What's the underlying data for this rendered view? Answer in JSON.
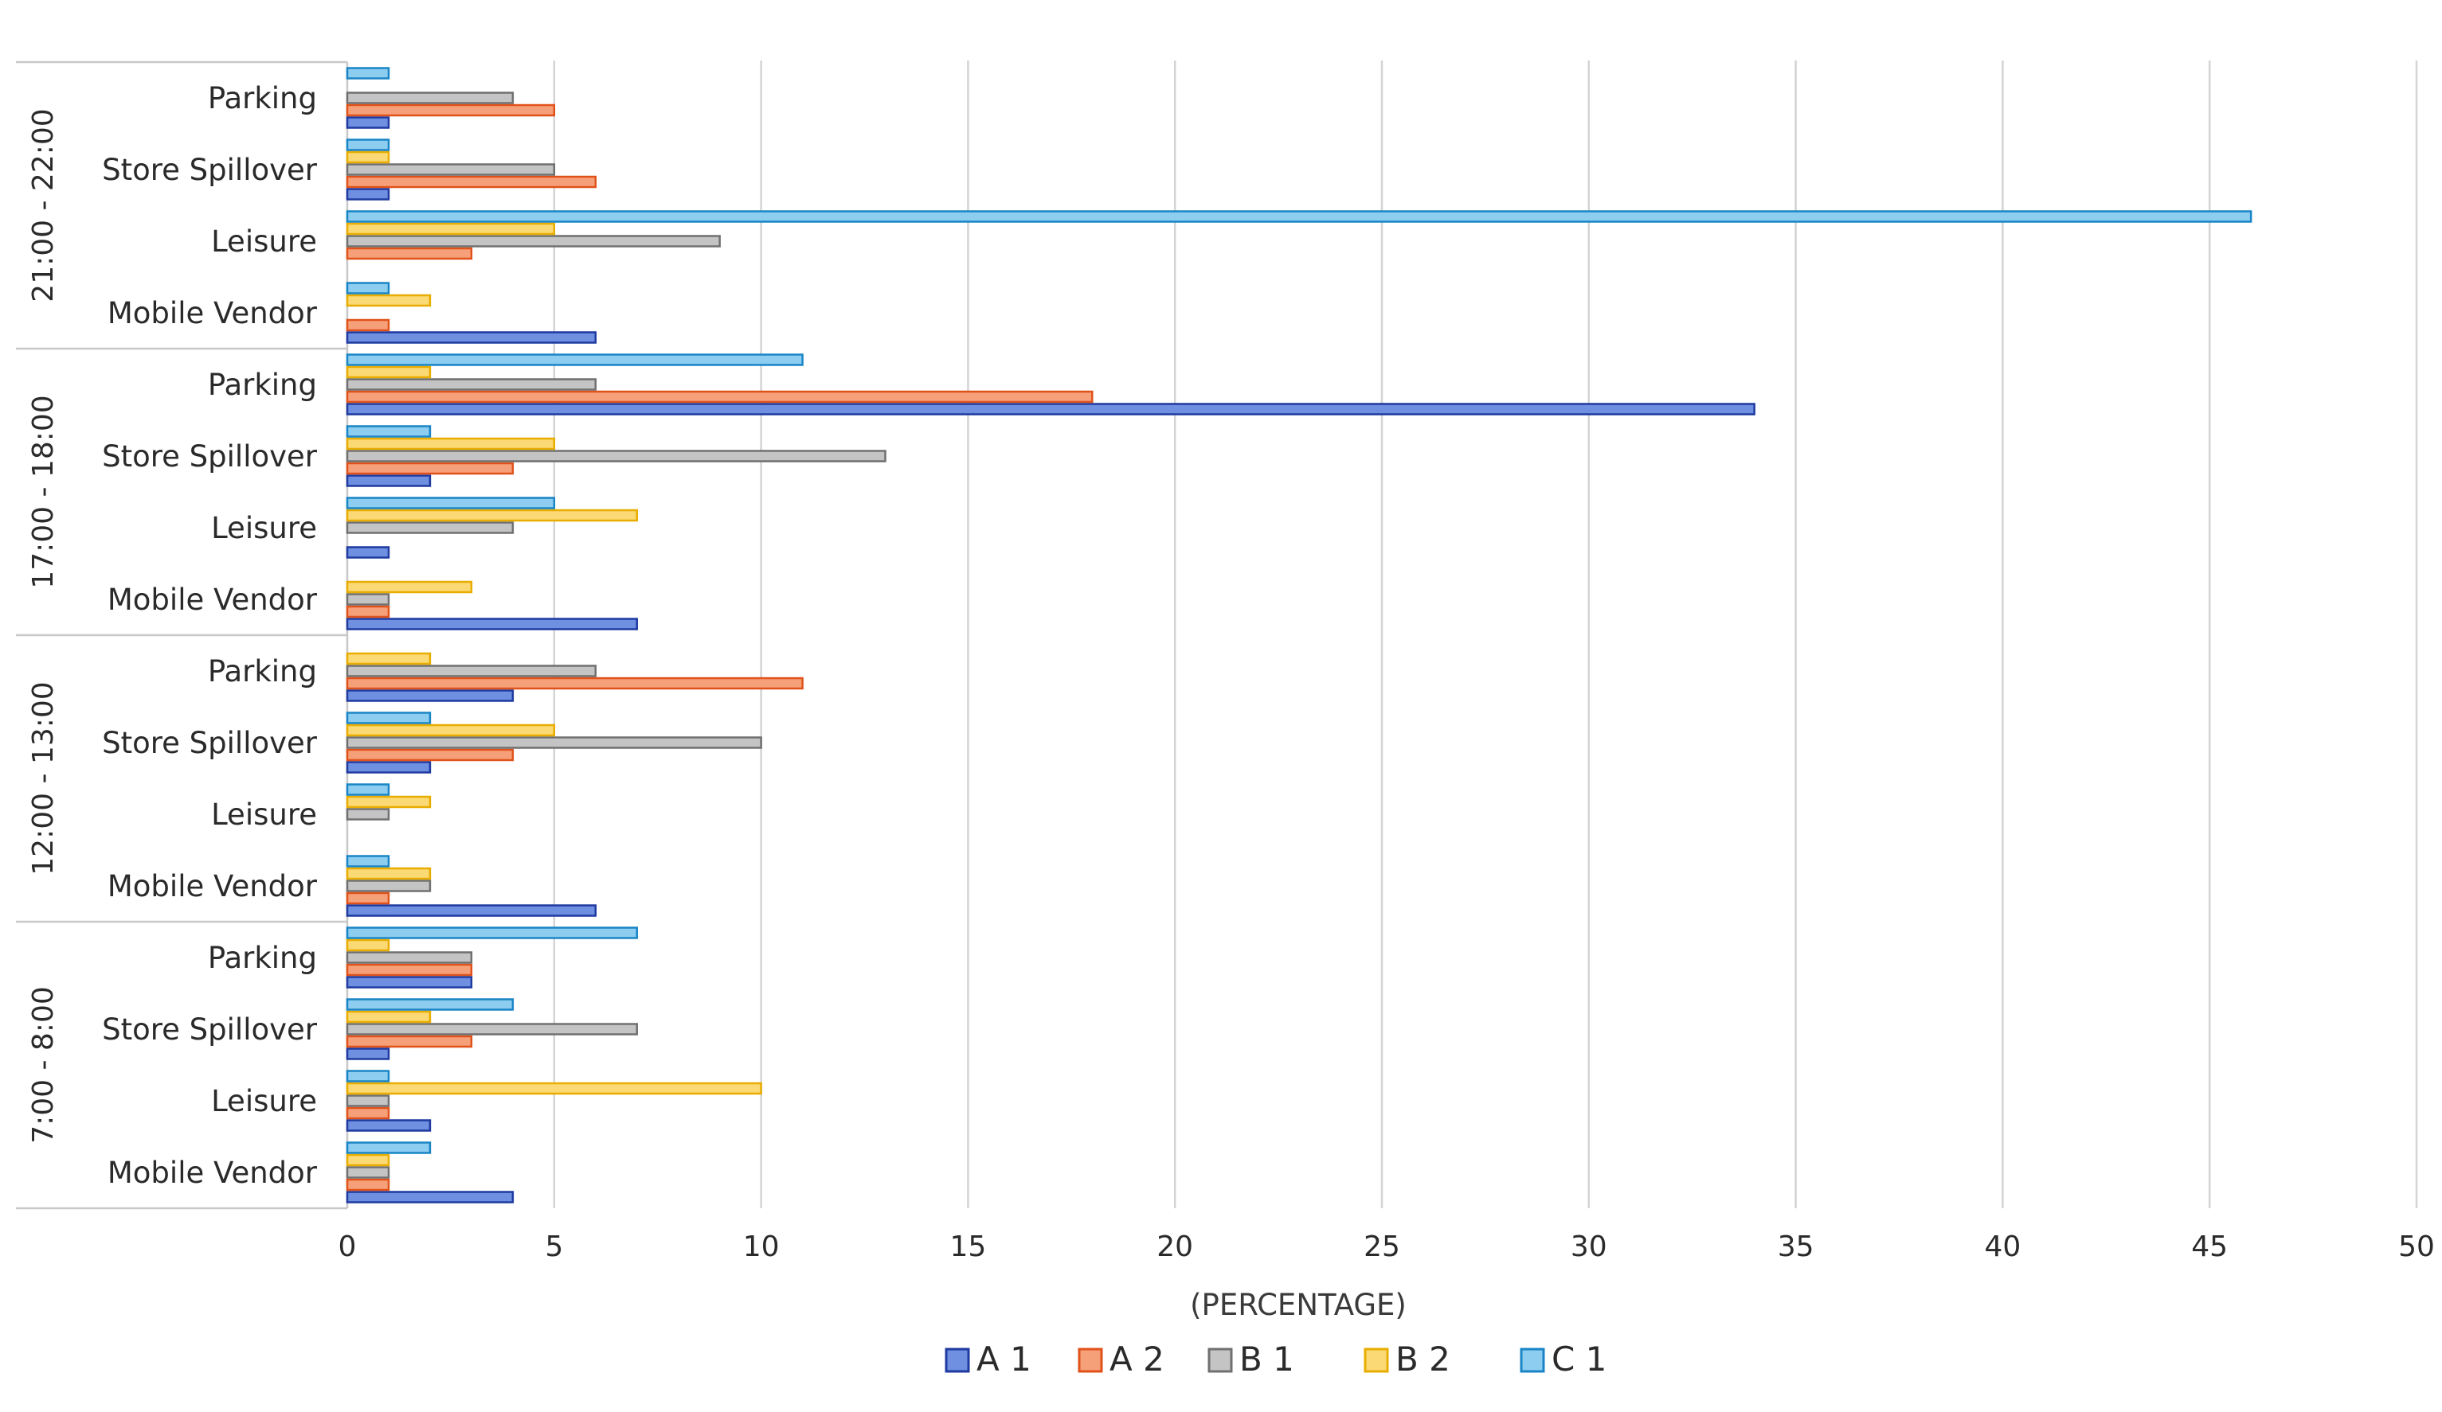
{
  "chart_data": {
    "type": "bar",
    "orientation": "horizontal",
    "title": "",
    "xlabel": "(PERCENTAGE)",
    "ylabel": "",
    "xlim": [
      0,
      50
    ],
    "xticks": [
      0,
      5,
      10,
      15,
      20,
      25,
      30,
      35,
      40,
      45,
      50
    ],
    "grid": true,
    "legend_position": "bottom",
    "colors": {
      "A 1": {
        "fill": "#6f8fe0",
        "stroke": "#1f3aa0"
      },
      "A 2": {
        "fill": "#f6a07a",
        "stroke": "#e0521a"
      },
      "B 1": {
        "fill": "#c4c4c4",
        "stroke": "#707070"
      },
      "B 2": {
        "fill": "#fbd974",
        "stroke": "#e8ad00"
      },
      "C 1": {
        "fill": "#8dcdf0",
        "stroke": "#1a85c6"
      }
    },
    "series_names": [
      "A 1",
      "A 2",
      "B 1",
      "B 2",
      "C 1"
    ],
    "groups": [
      {
        "name": "21:00 - 22:00",
        "categories": [
          {
            "name": "Parking",
            "values": {
              "A 1": 1,
              "A 2": 5,
              "B 1": 4,
              "B 2": 0,
              "C 1": 1
            }
          },
          {
            "name": "Store Spillover",
            "values": {
              "A 1": 1,
              "A 2": 6,
              "B 1": 5,
              "B 2": 1,
              "C 1": 1
            }
          },
          {
            "name": "Leisure",
            "values": {
              "A 1": 0,
              "A 2": 3,
              "B 1": 9,
              "B 2": 5,
              "C 1": 46
            }
          },
          {
            "name": "Mobile Vendor",
            "values": {
              "A 1": 6,
              "A 2": 1,
              "B 1": 0,
              "B 2": 2,
              "C 1": 1
            }
          }
        ]
      },
      {
        "name": "17:00 - 18:00",
        "categories": [
          {
            "name": "Parking",
            "values": {
              "A 1": 34,
              "A 2": 18,
              "B 1": 6,
              "B 2": 2,
              "C 1": 11
            }
          },
          {
            "name": "Store Spillover",
            "values": {
              "A 1": 2,
              "A 2": 4,
              "B 1": 13,
              "B 2": 5,
              "C 1": 2
            }
          },
          {
            "name": "Leisure",
            "values": {
              "A 1": 1,
              "A 2": 0,
              "B 1": 4,
              "B 2": 7,
              "C 1": 5
            }
          },
          {
            "name": "Mobile Vendor",
            "values": {
              "A 1": 7,
              "A 2": 1,
              "B 1": 1,
              "B 2": 3,
              "C 1": 0
            }
          }
        ]
      },
      {
        "name": "12:00 - 13:00",
        "categories": [
          {
            "name": "Parking",
            "values": {
              "A 1": 4,
              "A 2": 11,
              "B 1": 6,
              "B 2": 2,
              "C 1": 0
            }
          },
          {
            "name": "Store Spillover",
            "values": {
              "A 1": 2,
              "A 2": 4,
              "B 1": 10,
              "B 2": 5,
              "C 1": 2
            }
          },
          {
            "name": "Leisure",
            "values": {
              "A 1": 0,
              "A 2": 0,
              "B 1": 1,
              "B 2": 2,
              "C 1": 1
            }
          },
          {
            "name": "Mobile Vendor",
            "values": {
              "A 1": 6,
              "A 2": 1,
              "B 1": 2,
              "B 2": 2,
              "C 1": 1
            }
          }
        ]
      },
      {
        "name": "7:00 - 8:00",
        "categories": [
          {
            "name": "Parking",
            "values": {
              "A 1": 3,
              "A 2": 3,
              "B 1": 3,
              "B 2": 1,
              "C 1": 7
            }
          },
          {
            "name": "Store Spillover",
            "values": {
              "A 1": 1,
              "A 2": 3,
              "B 1": 7,
              "B 2": 2,
              "C 1": 4
            }
          },
          {
            "name": "Leisure",
            "values": {
              "A 1": 2,
              "A 2": 1,
              "B 1": 1,
              "B 2": 10,
              "C 1": 1
            }
          },
          {
            "name": "Mobile Vendor",
            "values": {
              "A 1": 4,
              "A 2": 1,
              "B 1": 1,
              "B 2": 1,
              "C 1": 2
            }
          }
        ]
      }
    ]
  }
}
